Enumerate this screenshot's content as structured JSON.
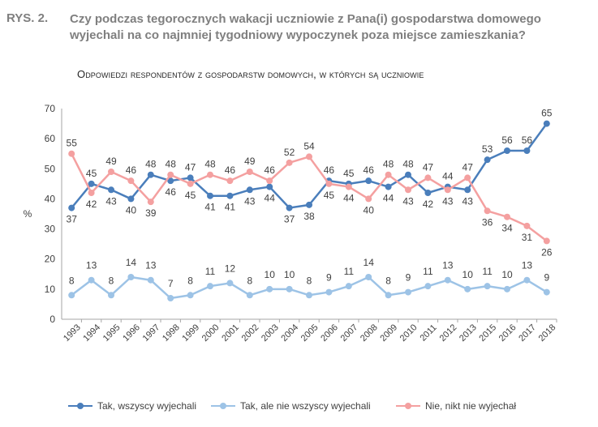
{
  "figure": {
    "label": "RYS. 2.",
    "title": "Czy podczas tegorocznych wakacji uczniowie z Pana(i) gospodarstwa domowego wyjechali na co najmniej tygodniowy wypoczynek poza miejsce zamieszkania?",
    "subtitle": "Odpowiedzi respondentów z gospodarstw domowych, w których są uczniowie"
  },
  "chart_data": {
    "type": "line",
    "ylabel": "%",
    "ylim": [
      0,
      70
    ],
    "yticks": [
      0,
      10,
      20,
      30,
      40,
      50,
      60,
      70
    ],
    "grid": false,
    "legend_position": "bottom",
    "x": [
      "1993",
      "1994",
      "1995",
      "1996",
      "1997",
      "1998",
      "1999",
      "2000",
      "2001",
      "2002",
      "2003",
      "2004",
      "2005",
      "2006",
      "2007",
      "2008",
      "2009",
      "2010",
      "2011",
      "2012",
      "2013",
      "2015",
      "2016",
      "2017",
      "2018"
    ],
    "series": [
      {
        "name": "Tak, wszyscy wyjechali",
        "color": "#4a7ebb",
        "values": [
          37,
          45,
          43,
          40,
          48,
          46,
          47,
          41,
          41,
          43,
          44,
          37,
          38,
          46,
          45,
          46,
          44,
          48,
          42,
          44,
          43,
          53,
          56,
          56,
          65
        ]
      },
      {
        "name": "Tak, ale nie wszyscy wyjechali",
        "color": "#9dc3e6",
        "values": [
          8,
          13,
          8,
          14,
          13,
          7,
          8,
          11,
          12,
          8,
          10,
          10,
          8,
          9,
          11,
          14,
          8,
          9,
          11,
          13,
          10,
          11,
          10,
          13,
          9
        ]
      },
      {
        "name": "Nie, nikt nie wyjechał",
        "color": "#f4a0a0",
        "values": [
          55,
          42,
          49,
          46,
          39,
          48,
          45,
          48,
          46,
          49,
          46,
          52,
          54,
          45,
          44,
          40,
          48,
          43,
          47,
          43,
          47,
          36,
          34,
          31,
          26
        ]
      }
    ]
  }
}
